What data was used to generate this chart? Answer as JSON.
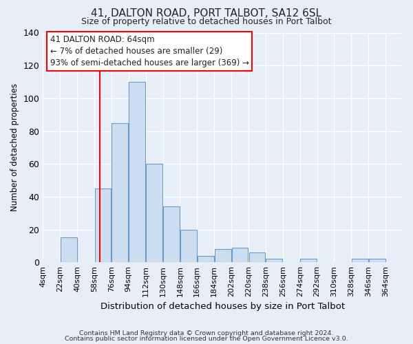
{
  "title1": "41, DALTON ROAD, PORT TALBOT, SA12 6SL",
  "title2": "Size of property relative to detached houses in Port Talbot",
  "xlabel": "Distribution of detached houses by size in Port Talbot",
  "ylabel": "Number of detached properties",
  "bar_left_edges": [
    4,
    22,
    40,
    58,
    76,
    94,
    112,
    130,
    148,
    166,
    184,
    202,
    220,
    238,
    256,
    274,
    292,
    310,
    328,
    346
  ],
  "bar_heights": [
    0,
    15,
    0,
    45,
    85,
    110,
    60,
    34,
    20,
    4,
    8,
    9,
    6,
    2,
    0,
    2,
    0,
    0,
    2,
    2
  ],
  "bin_width": 18,
  "bar_color": "#ccddf0",
  "bar_edge_color": "#6699cc",
  "ylim": [
    0,
    140
  ],
  "yticks": [
    0,
    20,
    40,
    60,
    80,
    100,
    120,
    140
  ],
  "xtick_labels": [
    "4sqm",
    "22sqm",
    "40sqm",
    "58sqm",
    "76sqm",
    "94sqm",
    "112sqm",
    "130sqm",
    "148sqm",
    "166sqm",
    "184sqm",
    "202sqm",
    "220sqm",
    "238sqm",
    "256sqm",
    "274sqm",
    "292sqm",
    "310sqm",
    "328sqm",
    "346sqm",
    "364sqm"
  ],
  "vline_x": 64,
  "annotation_line1": "41 DALTON ROAD: 64sqm",
  "annotation_line2": "← 7% of detached houses are smaller (29)",
  "annotation_line3": "93% of semi-detached houses are larger (369) →",
  "footer1": "Contains HM Land Registry data © Crown copyright and database right 2024.",
  "footer2": "Contains public sector information licensed under the Open Government Licence v3.0.",
  "background_color": "#e8eef7",
  "grid_color": "#ffffff",
  "text_color": "#222222"
}
